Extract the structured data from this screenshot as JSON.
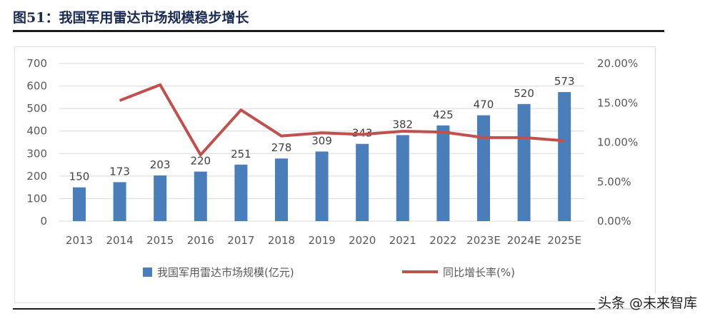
{
  "title": "图51：我国军用雷达市场规模稳步增长",
  "watermark": "头条 @未来智库",
  "chart_data": {
    "type": "bar+line",
    "categories": [
      "2013",
      "2014",
      "2015",
      "2016",
      "2017",
      "2018",
      "2019",
      "2020",
      "2021",
      "2022",
      "2023E",
      "2024E",
      "2025E"
    ],
    "series": [
      {
        "name": "我国军用雷达市场规模(亿元)",
        "type": "bar",
        "axis": "left",
        "color": "#4a7ebb",
        "values": [
          150,
          173,
          203,
          220,
          251,
          278,
          309,
          343,
          382,
          425,
          470,
          520,
          573
        ]
      },
      {
        "name": "同比增长率(%)",
        "type": "line",
        "axis": "right",
        "color": "#c0504d",
        "values": [
          null,
          15.3,
          17.3,
          8.4,
          14.1,
          10.8,
          11.2,
          11.0,
          11.4,
          11.3,
          10.6,
          10.6,
          10.2
        ]
      }
    ],
    "left_axis": {
      "ylim": [
        0,
        700
      ],
      "ticks": [
        "0",
        "100",
        "200",
        "300",
        "400",
        "500",
        "600",
        "700"
      ]
    },
    "right_axis": {
      "ylim": [
        0,
        20
      ],
      "ticks": [
        "0.00%",
        "5.00%",
        "10.00%",
        "15.00%",
        "20.00%"
      ]
    },
    "grid": true,
    "legend": "bottom"
  }
}
